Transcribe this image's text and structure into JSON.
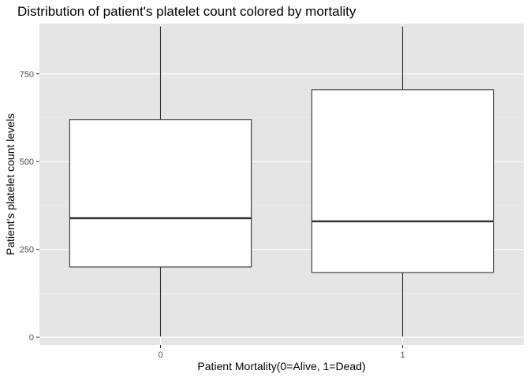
{
  "chart_data": {
    "type": "boxplot",
    "title": "Distribution of patient's platelet count colored by mortality",
    "xlabel": "Patient Mortality(0=Alive, 1=Dead)",
    "ylabel": "Patient's platelet count levels",
    "categories": [
      "0",
      "1"
    ],
    "y_ticks": [
      0,
      250,
      500,
      750
    ],
    "y_tick_labels": [
      "0",
      "250",
      "500",
      "750"
    ],
    "ylim": [
      -22,
      893
    ],
    "grid": true,
    "legend": "none",
    "boxes": [
      {
        "category": "0",
        "min": 2,
        "q1": 200,
        "median": 339,
        "q3": 620,
        "max": 885
      },
      {
        "category": "1",
        "min": 2,
        "q1": 184,
        "median": 330,
        "q3": 705,
        "max": 885
      }
    ],
    "colors": {
      "panel": "#e5e5e5",
      "grid": "#ffffff",
      "box_fill": "#ffffff",
      "box_line": "#333333"
    }
  }
}
